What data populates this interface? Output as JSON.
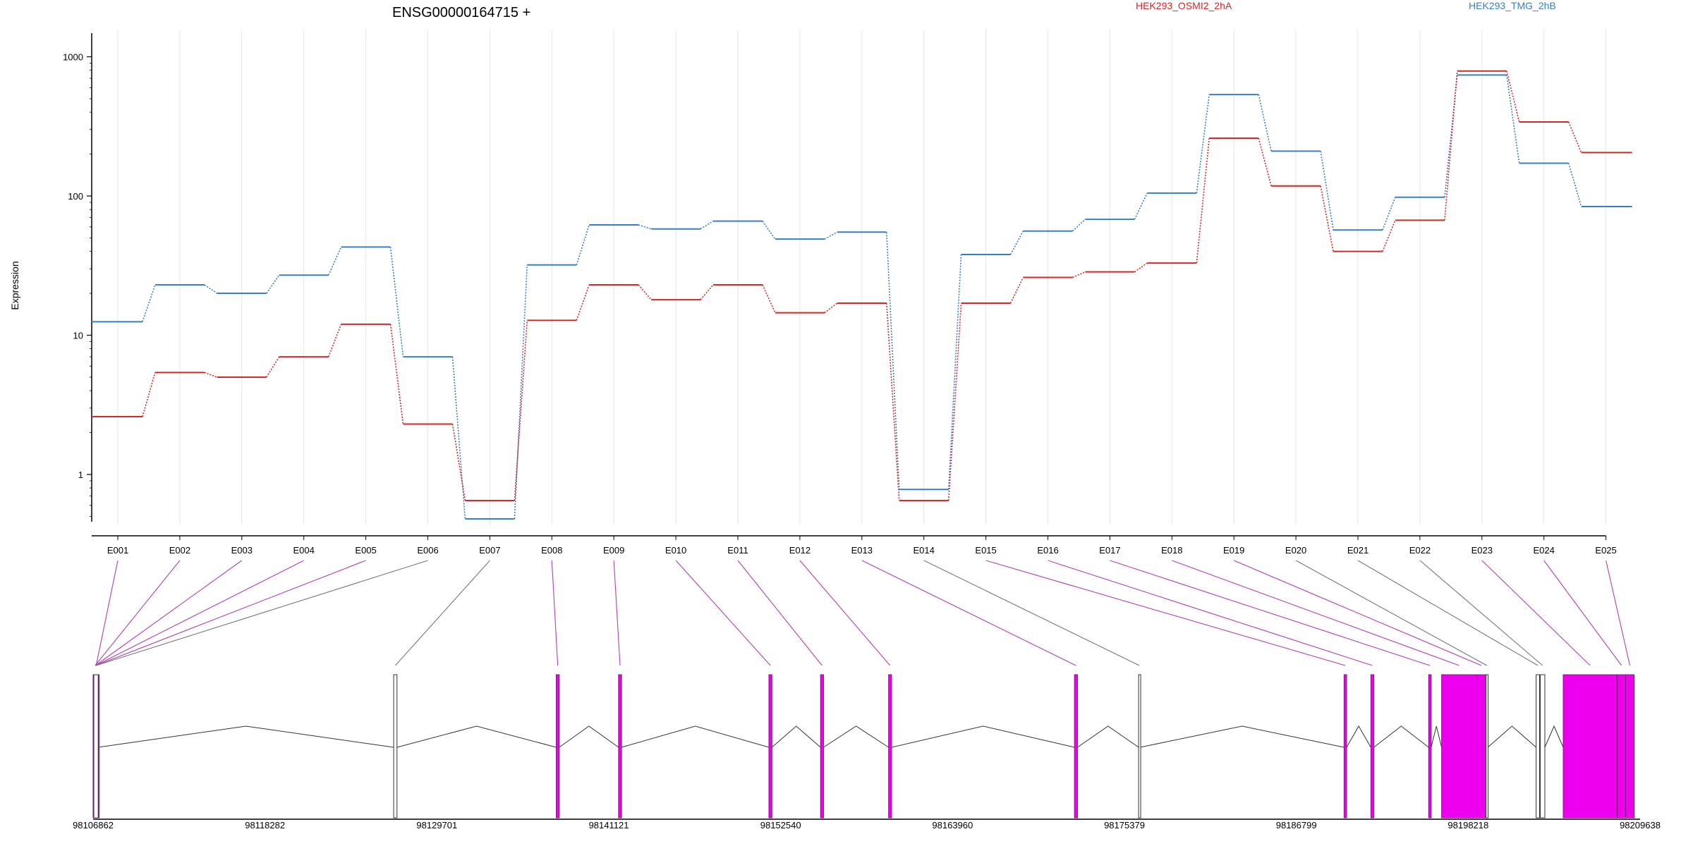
{
  "chart_data": [
    {
      "type": "line",
      "title": "ENSG00000164715 +",
      "ylabel": "Expression",
      "yscale": "log",
      "ylim": [
        0.5,
        1000
      ],
      "ytick_labels": [
        "1",
        "10",
        "100",
        "1000"
      ],
      "ytick_values": [
        1,
        10,
        100,
        1000
      ],
      "categories": [
        "E001",
        "E002",
        "E003",
        "E004",
        "E005",
        "E006",
        "E007",
        "E008",
        "E009",
        "E010",
        "E011",
        "E012",
        "E013",
        "E014",
        "E015",
        "E016",
        "E017",
        "E018",
        "E019",
        "E020",
        "E021",
        "E022",
        "E023",
        "E024",
        "E025"
      ],
      "grid": "vertical",
      "legend_position": "top",
      "series": [
        {
          "name": "HEK293_OSMI2_2hA",
          "color": "#d62728",
          "values": [
            2.6,
            5.4,
            5.0,
            7.0,
            12.0,
            2.3,
            0.65,
            12.8,
            23.0,
            18.0,
            23.0,
            14.5,
            17.0,
            0.65,
            17.0,
            26.0,
            28.5,
            33.0,
            260.0,
            118.0,
            40.0,
            67.0,
            790.0,
            340.0,
            205.0
          ]
        },
        {
          "name": "HEK293_TMG_2hB",
          "color": "#3a7fc1",
          "values": [
            12.5,
            23.0,
            20.0,
            27.0,
            43.0,
            7.0,
            0.48,
            32.0,
            62.0,
            58.0,
            66.0,
            49.0,
            55.0,
            0.78,
            38.0,
            56.0,
            68.0,
            105.0,
            535.0,
            210.0,
            57.0,
            98.0,
            740.0,
            172.0,
            84.0
          ]
        }
      ]
    },
    {
      "type": "gene_model",
      "x_tick_labels": [
        "98106862",
        "98118282",
        "98129701",
        "98141121",
        "98152540",
        "98163960",
        "98175379",
        "98186799",
        "98198218",
        "98209638"
      ],
      "xlim": [
        98106862,
        98209638
      ],
      "exon_color": "#ee00ee",
      "exons": [
        {
          "id": "E001",
          "start": 98106862,
          "end": 98107260,
          "highlight": true
        },
        {
          "id": "E002",
          "start": 98106870,
          "end": 98107120,
          "highlight": true
        },
        {
          "id": "E003",
          "start": 98106880,
          "end": 98107150,
          "highlight": true
        },
        {
          "id": "E004",
          "start": 98106890,
          "end": 98107170,
          "highlight": true
        },
        {
          "id": "E005",
          "start": 98106900,
          "end": 98107190,
          "highlight": true
        },
        {
          "id": "E006",
          "start": 98106910,
          "end": 98107200,
          "highlight": false
        },
        {
          "id": "E007",
          "start": 98126830,
          "end": 98127050,
          "highlight": false
        },
        {
          "id": "E008",
          "start": 98137630,
          "end": 98137830,
          "highlight": true
        },
        {
          "id": "E009",
          "start": 98141770,
          "end": 98141970,
          "highlight": true
        },
        {
          "id": "E010",
          "start": 98151760,
          "end": 98151960,
          "highlight": true
        },
        {
          "id": "E011",
          "start": 98155190,
          "end": 98155390,
          "highlight": true
        },
        {
          "id": "E012",
          "start": 98159710,
          "end": 98159910,
          "highlight": true
        },
        {
          "id": "E013",
          "start": 98172060,
          "end": 98172260,
          "highlight": true
        },
        {
          "id": "E014",
          "start": 98176320,
          "end": 98176420,
          "highlight": false
        },
        {
          "id": "E015",
          "start": 98189970,
          "end": 98190140,
          "highlight": true
        },
        {
          "id": "E016",
          "start": 98191750,
          "end": 98191950,
          "highlight": true
        },
        {
          "id": "E017",
          "start": 98195590,
          "end": 98195760,
          "highlight": true
        },
        {
          "id": "E018",
          "start": 98196450,
          "end": 98198790,
          "highlight": true
        },
        {
          "id": "E019",
          "start": 98198790,
          "end": 98199400,
          "highlight": true
        },
        {
          "id": "E020",
          "start": 98199400,
          "end": 98199520,
          "highlight": false
        },
        {
          "id": "E021",
          "start": 98202730,
          "end": 98202960,
          "highlight": false
        },
        {
          "id": "E022",
          "start": 98203010,
          "end": 98203310,
          "highlight": false
        },
        {
          "id": "E023",
          "start": 98204530,
          "end": 98208110,
          "highlight": true
        },
        {
          "id": "E024",
          "start": 98208130,
          "end": 98208680,
          "highlight": true
        },
        {
          "id": "E025",
          "start": 98208680,
          "end": 98209240,
          "highlight": true
        }
      ]
    }
  ]
}
